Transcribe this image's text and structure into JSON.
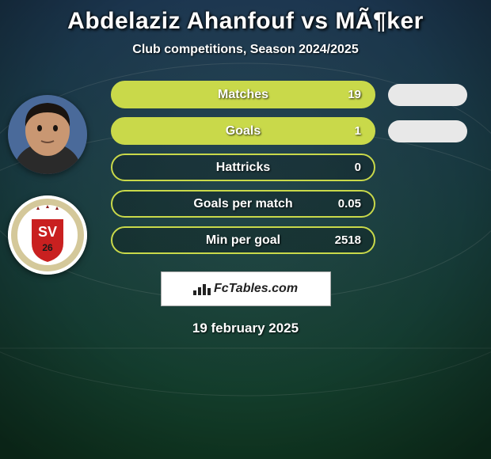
{
  "title": "Abdelaziz Ahanfouf vs MÃ¶ker",
  "subtitle": "Club competitions, Season 2024/2025",
  "date": "19 february 2025",
  "brand": "FcTables.com",
  "background": {
    "top_color": "#2a4a7a",
    "bottom_color": "#1a5a35",
    "overlay": "rgba(10,30,20,0.35)"
  },
  "pill_style": {
    "border_color": "#c9d94a",
    "fill_color": "#c9d94a",
    "border_width": 2,
    "radius": 18
  },
  "side_pill_color": "#e8e8e8",
  "stats": [
    {
      "label": "Matches",
      "value": "19",
      "fill": 1.0,
      "side_pill": true
    },
    {
      "label": "Goals",
      "value": "1",
      "fill": 1.0,
      "side_pill": true
    },
    {
      "label": "Hattricks",
      "value": "0",
      "fill": 0.0,
      "side_pill": false
    },
    {
      "label": "Goals per match",
      "value": "0.05",
      "fill": 0.0,
      "side_pill": false
    },
    {
      "label": "Min per goal",
      "value": "2518",
      "fill": 0.0,
      "side_pill": false
    }
  ],
  "avatar_player": {
    "skin": "#c99772",
    "hair": "#1a1410",
    "bg": "#4a6a9a"
  },
  "club_badge": {
    "outer": "#ffffff",
    "ring": "#d4c89a",
    "inner": "#c92020",
    "text": "SV"
  }
}
